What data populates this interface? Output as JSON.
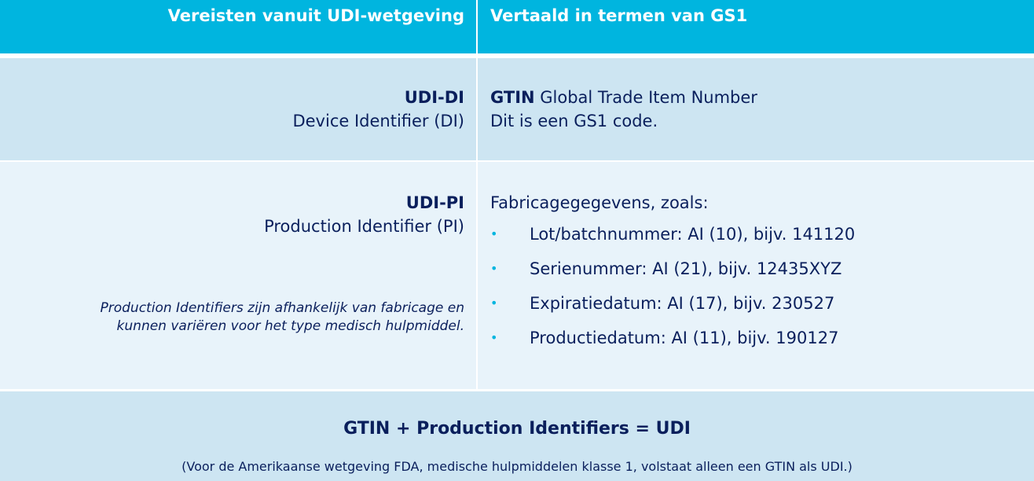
{
  "header": {
    "left": "Vereisten vanuit UDI-wetgeving",
    "right": "Vertaald in termen van GS1"
  },
  "row_di": {
    "left_title": "UDI-DI",
    "left_subtitle": "Device Identifier (DI)",
    "right_bold": "GTIN",
    "right_rest": " Global Trade Item Number",
    "right_line2": "Dit is een GS1 code."
  },
  "row_pi": {
    "left_title": "UDI-PI",
    "left_subtitle": "Production Identifier (PI)",
    "note_line1": "Production Identifiers zijn afhankelijk van fabricage en",
    "note_line2": "kunnen variëren voor het type medisch hulpmiddel.",
    "intro": "Fabricagegegevens, zoals:",
    "items": [
      "Lot/batchnummer: AI (10), bijv. 141120",
      "Serienummer: AI (21), bijv. 12435XYZ",
      "Expiratiedatum: AI (17), bijv. 230527",
      "Productiedatum: AI (11), bijv. 190127"
    ]
  },
  "footer": {
    "equation": "GTIN + Production Identifiers = UDI",
    "footnote": "(Voor de Amerikaanse wetgeving FDA, medische hulpmiddelen klasse 1, volstaat alleen een GTIN als UDI.)"
  },
  "colors": {
    "header": "#00b5df",
    "row_dark": "#cde5f2",
    "row_light": "#e8f3fa",
    "text": "#0a1f5c",
    "bullet": "#00b5df"
  }
}
